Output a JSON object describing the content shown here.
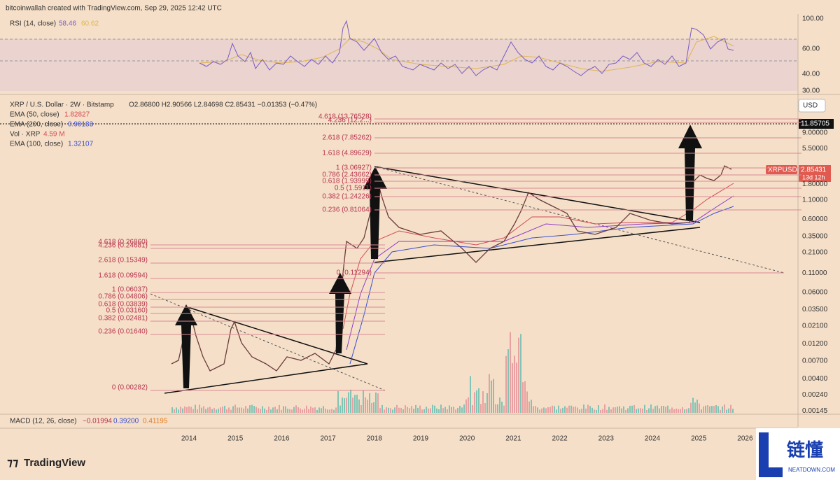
{
  "header": {
    "credit": "bitcoinwallah created with TradingView.com, Sep 29, 2025 12:42 UTC"
  },
  "rsi": {
    "label": "RSI (14, close)",
    "value1": "58.46",
    "value2": "60.62",
    "ticks": [
      "100.00",
      "60.00",
      "40.00",
      "30.00"
    ]
  },
  "legend": {
    "symbol": "XRP / U.S. Dollar · 2W · Bitstamp",
    "ohlc": "O2.86800  H2.90566  L2.84698  C2.85431  −0.01353 (−0.47%)",
    "ema50": {
      "label": "EMA (50, close)",
      "value": "1.82827"
    },
    "ema200": {
      "label": "EMA (200, close)",
      "value": "0.90183"
    },
    "vol": {
      "label": "Vol · XRP",
      "value": "4.59 M"
    },
    "ema100": {
      "label": "EMA (100, close)",
      "value": "1.32107"
    }
  },
  "price_axis": {
    "currency": "USD",
    "ticks": [
      "9.00000",
      "5.50000",
      "1.80000",
      "1.10000",
      "0.60000",
      "0.35000",
      "0.21000",
      "0.11000",
      "0.06000",
      "0.03500",
      "0.02100",
      "0.01200",
      "0.00700",
      "0.00400",
      "0.00240",
      "0.00145"
    ],
    "crosshair": "11.85705",
    "symbol_tag": "XRPUSD",
    "last_price": "2.85431",
    "countdown": "13d 12h"
  },
  "fib_upper": [
    "4.618 (13.76528)",
    "4.236 (12.2...)",
    "2.618 (7.85262)",
    "1.618 (4.89629)",
    "1 (3.06927)",
    "0.786 (2.43662)",
    "0.618 (1.93999)",
    "0.5 (1.5911)",
    "0.382 (1.24226)",
    "0.236 (0.81064)",
    "0 (0.11294)"
  ],
  "fib_lower": [
    "4.618 (0.26860)",
    "4.236 (0.24681)",
    "2.618 (0.15349)",
    "1.618 (0.09594)",
    "1 (0.06037)",
    "0.786 (0.04806)",
    "0.618 (0.03839)",
    "0.5 (0.03160)",
    "0.382 (0.02481)",
    "0.236 (0.01640)",
    "0 (0.00282)"
  ],
  "macd": {
    "label": "MACD (12, 26, close)",
    "v1": "−0.01994",
    "v2": "0.39200",
    "v3": "0.41195"
  },
  "x_axis": [
    "2014",
    "2015",
    "2016",
    "2017",
    "2018",
    "2019",
    "2020",
    "2021",
    "2022",
    "2023",
    "2024",
    "2025",
    "2026"
  ],
  "footer": {
    "brand": "TradingView",
    "watermark": "链懂",
    "watermark_sub": "NEATDOWN.COM"
  }
}
